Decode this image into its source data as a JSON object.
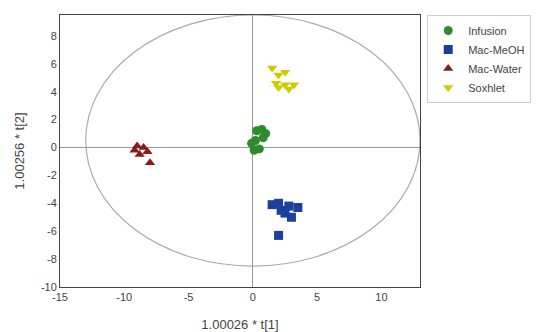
{
  "chart_data": {
    "type": "scatter",
    "xlabel": "1.00026 * t[1]",
    "ylabel": "1.00256 * t[2]",
    "xlim": [
      -15,
      13
    ],
    "ylim": [
      -10,
      9.5
    ],
    "xticks": [
      -15,
      -10,
      -5,
      0,
      5,
      10
    ],
    "yticks": [
      -10,
      -8,
      -6,
      -4,
      -2,
      0,
      2,
      4,
      6,
      8
    ],
    "grid": false,
    "legend": "upper right",
    "ellipse": {
      "cx": 0.0,
      "cy": 0.5,
      "width": 26.0,
      "height": 18.0,
      "color": "#aaaaaa"
    },
    "series": [
      {
        "name": "Infusion",
        "color": "#2e8b2e",
        "marker": "circle",
        "x": [
          0.3,
          0.7,
          1.0,
          0.8,
          0.2,
          0.5,
          0.1,
          -0.1
        ],
        "values": [
          1.2,
          1.3,
          1.0,
          0.7,
          0.5,
          -0.1,
          -0.2,
          0.3
        ]
      },
      {
        "name": "Mac-MeOH",
        "color": "#1c3f9e",
        "marker": "square",
        "x": [
          1.5,
          2.0,
          2.8,
          3.5,
          2.5,
          3.0,
          2.2,
          2.0
        ],
        "values": [
          -4.1,
          -4.0,
          -4.2,
          -4.3,
          -4.7,
          -5.0,
          -4.5,
          -6.3
        ]
      },
      {
        "name": "Mac-Water",
        "color": "#8b1a1a",
        "marker": "triangle-up",
        "x": [
          -9.0,
          -8.5,
          -8.2,
          -8.8,
          -9.2,
          -8.0
        ],
        "values": [
          0.1,
          0.0,
          -0.3,
          -0.5,
          -0.2,
          -1.1
        ]
      },
      {
        "name": "Soxhlet",
        "color": "#cccc00",
        "marker": "triangle-down",
        "x": [
          1.5,
          2.5,
          2.0,
          1.8,
          2.5,
          3.2,
          2.8,
          2.0
        ],
        "values": [
          5.7,
          5.4,
          5.2,
          4.6,
          4.5,
          4.5,
          4.2,
          4.3
        ]
      }
    ]
  }
}
